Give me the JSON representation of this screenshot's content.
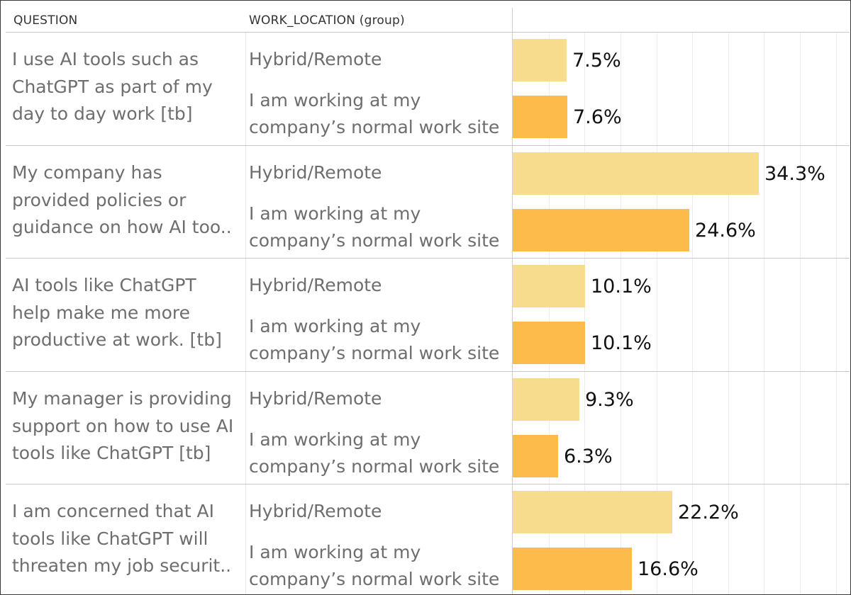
{
  "headers": {
    "question": "QUESTION",
    "work_location": "WORK_LOCATION (group)"
  },
  "colors": {
    "hybrid_remote": "#F8DC8E",
    "normal_work_site": "#FDBB4B"
  },
  "chart_data": {
    "type": "bar",
    "orientation": "horizontal",
    "value_unit": "%",
    "xlim": [
      0,
      47
    ],
    "grid": "vertical",
    "categories": [
      "I use AI tools such as\nChatGPT as part of my\nday to day work [tb]",
      "My company has\nprovided policies or\nguidance on how AI too..",
      "AI tools like ChatGPT\nhelp make me more\nproductive at work. [tb]",
      "My manager is providing\nsupport on how to use AI\ntools like ChatGPT [tb]",
      "I am concerned that AI\ntools like ChatGPT will\nthreaten my job securit.."
    ],
    "series": [
      {
        "name": "Hybrid/Remote",
        "values": [
          7.5,
          34.3,
          10.1,
          9.3,
          22.2
        ],
        "labels": [
          "7.5%",
          "34.3%",
          "10.1%",
          "9.3%",
          "22.2%"
        ]
      },
      {
        "name": "I am working at my\ncompany’s normal work site",
        "values": [
          7.6,
          24.6,
          10.1,
          6.3,
          16.6
        ],
        "labels": [
          "7.6%",
          "24.6%",
          "10.1%",
          "6.3%",
          "16.6%"
        ]
      }
    ]
  }
}
